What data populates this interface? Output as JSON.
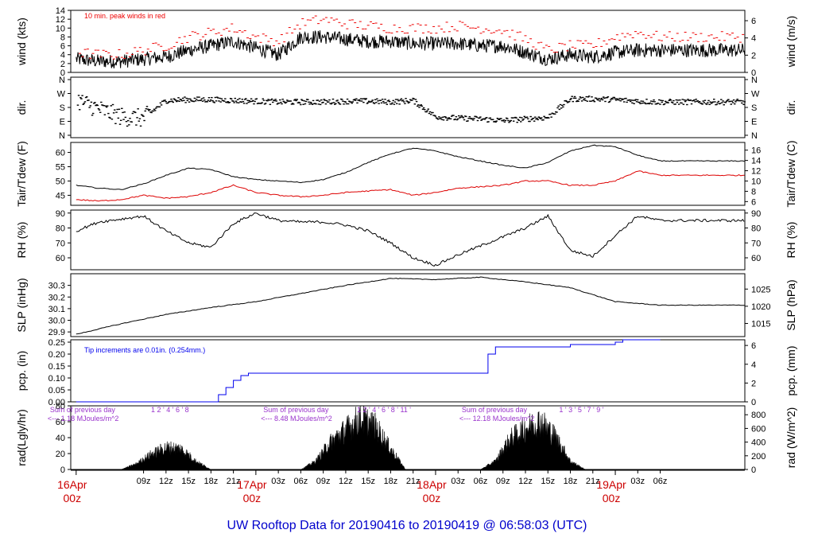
{
  "title": "UW Rooftop Data for 20190416  to  20190419 @ 06:58:03  (UTC)",
  "colors": {
    "primary": "#000000",
    "dewpoint": "#dd0000",
    "peak": "#ee0000",
    "precip": "#0000ee",
    "sumtext": "#9933cc",
    "title": "#0000cc",
    "date": "#cc0000"
  },
  "time_axis": {
    "ticks": [
      "09z",
      "12z",
      "15z",
      "18z",
      "21z",
      "03z",
      "06z",
      "09z",
      "12z",
      "15z",
      "18z",
      "21z",
      "03z",
      "06z",
      "09z",
      "12z",
      "15z",
      "18z",
      "21z",
      "03z",
      "06z"
    ],
    "date_labels": [
      {
        "top": "16Apr",
        "bottom": "00z"
      },
      {
        "top": "17Apr",
        "bottom": "00z"
      },
      {
        "top": "18Apr",
        "bottom": "00z"
      },
      {
        "top": "19Apr",
        "bottom": "00z"
      }
    ]
  },
  "chart_data": [
    {
      "type": "line",
      "name": "wind",
      "ylabel_left": "wind (kts)",
      "ylabel_right": "wind (m/s)",
      "ylim": [
        0,
        14
      ],
      "yticks_left": [
        "0",
        "2",
        "4",
        "6",
        "8",
        "10",
        "12",
        "14"
      ],
      "yticks_right": [
        "0",
        "2",
        "4",
        "6"
      ],
      "annotation": "10 min. peak winds in red",
      "x_hours": [
        0,
        3,
        6,
        9,
        12,
        15,
        18,
        21,
        24,
        27,
        30,
        33,
        36,
        39,
        42,
        45,
        48,
        51,
        54,
        57,
        60,
        63,
        66,
        69,
        72,
        75,
        78
      ],
      "series": [
        {
          "key": "mean",
          "values": [
            3,
            2.5,
            2.5,
            3,
            3.5,
            5,
            6,
            7,
            5.5,
            4,
            8,
            8,
            7.5,
            7,
            7,
            6.5,
            6.5,
            6.5,
            6,
            6,
            4.5,
            3,
            4,
            3.5,
            4.5,
            5,
            5
          ]
        },
        {
          "key": "peak",
          "values": [
            4.5,
            4,
            4,
            5,
            6,
            8,
            9,
            10,
            8,
            7,
            11,
            12,
            11,
            10.5,
            10,
            10,
            10,
            10.5,
            10,
            9.5,
            7.5,
            5,
            6,
            6,
            8,
            9,
            8
          ]
        }
      ]
    },
    {
      "type": "scatter",
      "name": "direction",
      "ylabel_left": "dir.",
      "ylabel_right": "dir.",
      "yticks": [
        "N",
        "E",
        "S",
        "W",
        "N"
      ],
      "x_hours": [
        0,
        3,
        6,
        9,
        12,
        15,
        18,
        21,
        24,
        27,
        30,
        33,
        36,
        39,
        42,
        45,
        48,
        51,
        54,
        57,
        60,
        63,
        66,
        69,
        72,
        75,
        78
      ],
      "values_deg": [
        230,
        170,
        120,
        110,
        225,
        230,
        230,
        225,
        220,
        215,
        215,
        215,
        220,
        220,
        215,
        225,
        120,
        110,
        105,
        95,
        105,
        115,
        235,
        235,
        230,
        220,
        215
      ]
    },
    {
      "type": "line",
      "name": "temperature",
      "ylabel_left": "Tair/Tdew (F)",
      "ylabel_right": "Tair/Tdew (C)",
      "ylim": [
        41.5,
        63.5
      ],
      "yticks_left": [
        "45",
        "50",
        "55",
        "60"
      ],
      "yticks_right": [
        "6",
        "8",
        "10",
        "12",
        "14",
        "16"
      ],
      "x_hours": [
        0,
        3,
        6,
        9,
        12,
        15,
        18,
        21,
        24,
        27,
        30,
        33,
        36,
        39,
        42,
        45,
        48,
        51,
        54,
        57,
        60,
        63,
        66,
        69,
        72,
        75,
        78
      ],
      "series": [
        {
          "key": "Tair",
          "values": [
            48.5,
            47.5,
            47,
            49,
            52,
            54.5,
            54,
            51.5,
            50.5,
            50,
            49.5,
            50.5,
            53,
            56.5,
            59.5,
            61.5,
            60.5,
            58.5,
            57,
            55.5,
            54.5,
            56.5,
            60.5,
            62.5,
            62,
            59,
            57
          ]
        },
        {
          "key": "Tdew",
          "values": [
            43.5,
            43,
            43.5,
            45,
            44,
            44.5,
            46,
            48.5,
            46,
            45,
            44.5,
            45,
            46,
            46.5,
            47,
            45,
            46,
            47.5,
            48,
            48.5,
            50,
            50,
            48.5,
            48.5,
            50,
            53.5,
            52
          ]
        }
      ]
    },
    {
      "type": "line",
      "name": "RH",
      "ylabel_left": "RH (%)",
      "ylabel_right": "RH (%)",
      "ylim": [
        52,
        92
      ],
      "yticks_left": [
        "60",
        "70",
        "80",
        "90"
      ],
      "yticks_right": [
        "60",
        "70",
        "80",
        "90"
      ],
      "x_hours": [
        0,
        3,
        6,
        9,
        12,
        15,
        18,
        21,
        24,
        27,
        30,
        33,
        36,
        39,
        42,
        45,
        48,
        51,
        54,
        57,
        60,
        63,
        66,
        69,
        72,
        75,
        78
      ],
      "values": [
        78,
        84,
        86,
        88,
        78,
        70,
        67,
        83,
        90,
        85,
        84,
        84,
        82,
        78,
        70,
        60,
        55,
        62,
        68,
        74,
        80,
        88,
        65,
        61,
        75,
        88,
        85
      ]
    },
    {
      "type": "line",
      "name": "SLP",
      "ylabel_left": "SLP (inHg)",
      "ylabel_right": "SLP (hPa)",
      "ylim": [
        29.86,
        30.4
      ],
      "yticks_left": [
        "29.9",
        "30.0",
        "30.1",
        "30.2",
        "30.3"
      ],
      "yticks_right": [
        "1015",
        "1020",
        "1025"
      ],
      "x_hours": [
        0,
        6,
        12,
        18,
        24,
        30,
        36,
        42,
        48,
        54,
        60,
        66,
        72,
        78
      ],
      "values": [
        29.88,
        29.97,
        30.05,
        30.11,
        30.16,
        30.23,
        30.3,
        30.36,
        30.35,
        30.37,
        30.33,
        30.28,
        30.16,
        30.13
      ]
    },
    {
      "type": "line",
      "name": "precipitation",
      "ylabel_left": "pcp. (in)",
      "ylabel_right": "pcp. (mm)",
      "ylim": [
        0,
        0.26
      ],
      "yticks_left": [
        "0.00",
        "0.05",
        "0.10",
        "0.15",
        "0.20",
        "0.25"
      ],
      "yticks_right": [
        "0",
        "2",
        "4",
        "6"
      ],
      "annotation": "Tip increments are 0.01in. (0.254mm.)",
      "x_hours": [
        0,
        18,
        19,
        20,
        21,
        22,
        23,
        54,
        55,
        56,
        60,
        66,
        72,
        73,
        78
      ],
      "values": [
        0,
        0,
        0.03,
        0.06,
        0.09,
        0.11,
        0.12,
        0.12,
        0.2,
        0.23,
        0.23,
        0.24,
        0.25,
        0.26,
        0.26
      ]
    },
    {
      "type": "area",
      "name": "radiation",
      "ylabel_left": "rad(Lgly/hr)",
      "ylabel_right": "rad (W/m^2)",
      "ylim": [
        0,
        80
      ],
      "yticks_left": [
        "0",
        "20",
        "40",
        "60",
        "80"
      ],
      "yticks_right": [
        "0",
        "200",
        "400",
        "600",
        "800"
      ],
      "x_hours": [
        6,
        8,
        10,
        12,
        14,
        16,
        18,
        30,
        32,
        34,
        36,
        38,
        40,
        42,
        44,
        54,
        56,
        58,
        60,
        62,
        64,
        66,
        68
      ],
      "values": [
        0,
        8,
        22,
        32,
        30,
        12,
        0,
        0,
        12,
        40,
        58,
        75,
        62,
        30,
        0,
        0,
        12,
        45,
        60,
        70,
        48,
        12,
        0
      ],
      "sums": [
        {
          "line1": "Sum of previous day",
          "line2": "<--- 1.18 MJoules/m^2"
        },
        {
          "line1": "Sum of previous day",
          "line2": "<--- 8.48 MJoules/m^2"
        },
        {
          "line1": "Sum of previous day",
          "line2": "<--- 12.18 MJoules/m^2"
        }
      ],
      "hour_marks": [
        "1   2   '   4   '   6   '   8",
        "1   2   '   4   '   6   '   8   '   11   '",
        "1   '   3   '   5   '   7   '   9   '"
      ]
    }
  ]
}
